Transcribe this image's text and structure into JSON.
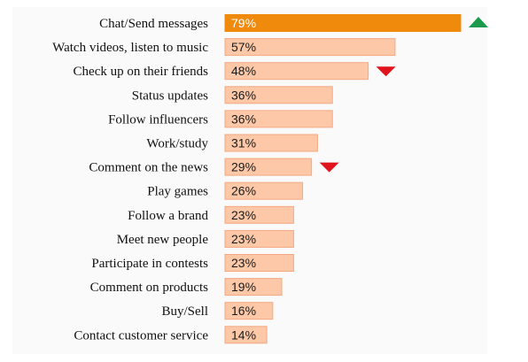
{
  "chart_data": {
    "type": "bar",
    "orientation": "horizontal",
    "categories": [
      "Chat/Send messages",
      "Watch videos, listen to music",
      "Check up on their friends",
      "Status updates",
      "Follow influencers",
      "Work/study",
      "Comment on the news",
      "Play games",
      "Follow a brand",
      "Meet new people",
      "Participate in contests",
      "Comment on products",
      "Buy/Sell",
      "Contact customer service"
    ],
    "values": [
      79,
      57,
      48,
      36,
      36,
      31,
      29,
      26,
      23,
      23,
      23,
      19,
      16,
      14
    ],
    "value_labels": [
      "79%",
      "57%",
      "48%",
      "36%",
      "36%",
      "31%",
      "29%",
      "26%",
      "23%",
      "23%",
      "23%",
      "19%",
      "16%",
      "14%"
    ],
    "trend_markers": [
      {
        "category": "Chat/Send messages",
        "direction": "up",
        "color": "#1a9a4a"
      },
      {
        "category": "Check up on their friends",
        "direction": "down",
        "color": "#e0141b"
      },
      {
        "category": "Comment on the news",
        "direction": "down",
        "color": "#e0141b"
      }
    ],
    "xlim": [
      0,
      100
    ],
    "title": "",
    "xlabel": "",
    "ylabel": "",
    "grid": false,
    "legend": "none",
    "colors": {
      "highlight_bar": "#f08a0c",
      "bar_fill": "#fcc8a8",
      "bar_stroke": "#f4a882",
      "up_arrow": "#1a9a4a",
      "down_arrow": "#e0141b"
    }
  }
}
